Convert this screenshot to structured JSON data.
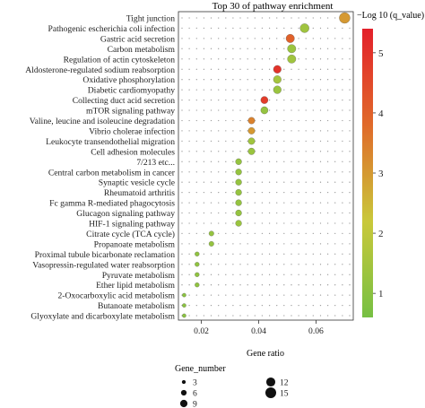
{
  "chart_data": {
    "type": "scatter",
    "title": "Top 30 of pathway enrichment",
    "xlabel": "Gene ratio",
    "ylabel": "",
    "xlim": [
      0.012,
      0.073
    ],
    "xticks": [
      0.02,
      0.04,
      0.06
    ],
    "xtick_labels": [
      "0.02",
      "0.04",
      "0.06"
    ],
    "categories": [
      "Tight junction",
      "Pathogenic escherichia coli infection",
      "Gastric acid secretion",
      "Carbon metabolism",
      "Regulation of actin cytoskeleton",
      "Aldosterone-regulated sodium reabsorption",
      "Oxidative phosphorylation",
      "Diabetic cardiomyopathy",
      "Collecting duct acid secretion",
      "mTOR signaling pathway",
      "Valine, leucine and isoleucine degradation",
      "Vibrio cholerae infection",
      "Leukocyte transendothelial migration",
      "Cell adhesion molecules",
      "7/213 etc...",
      "Central carbon metabolism in cancer",
      "Synaptic vesicle cycle",
      "Rheumatoid arthritis",
      "Fc gamma R-mediated phagocytosis",
      "Glucagon signaling pathway",
      "HIF-1 signaling pathway",
      "Citrate cycle (TCA cycle)",
      "Propanoate metabolism",
      "Proximal tubule bicarbonate reclamation",
      "Vasopressin-regulated water reabsorption",
      "Pyruvate metabolism",
      "Ether lipid metabolism",
      "2-Oxocarboxylic acid metabolism",
      "Butanoate metabolism",
      "Glyoxylate and dicarboxylate metabolism"
    ],
    "points": [
      {
        "x": 0.07,
        "gene_number": 15,
        "neglog10q": 3.0
      },
      {
        "x": 0.056,
        "gene_number": 12,
        "neglog10q": 1.4
      },
      {
        "x": 0.051,
        "gene_number": 11,
        "neglog10q": 4.0
      },
      {
        "x": 0.0515,
        "gene_number": 11,
        "neglog10q": 1.3
      },
      {
        "x": 0.0515,
        "gene_number": 11,
        "neglog10q": 1.4
      },
      {
        "x": 0.0465,
        "gene_number": 10,
        "neglog10q": 5.0
      },
      {
        "x": 0.0465,
        "gene_number": 10,
        "neglog10q": 1.5
      },
      {
        "x": 0.0465,
        "gene_number": 10,
        "neglog10q": 1.3
      },
      {
        "x": 0.042,
        "gene_number": 9,
        "neglog10q": 4.8
      },
      {
        "x": 0.042,
        "gene_number": 9,
        "neglog10q": 1.2
      },
      {
        "x": 0.0375,
        "gene_number": 8,
        "neglog10q": 3.4
      },
      {
        "x": 0.0375,
        "gene_number": 8,
        "neglog10q": 3.0
      },
      {
        "x": 0.0375,
        "gene_number": 8,
        "neglog10q": 1.4
      },
      {
        "x": 0.0375,
        "gene_number": 8,
        "neglog10q": 1.3
      },
      {
        "x": 0.033,
        "gene_number": 7,
        "neglog10q": 1.2
      },
      {
        "x": 0.033,
        "gene_number": 7,
        "neglog10q": 1.2
      },
      {
        "x": 0.033,
        "gene_number": 7,
        "neglog10q": 1.2
      },
      {
        "x": 0.033,
        "gene_number": 7,
        "neglog10q": 1.2
      },
      {
        "x": 0.033,
        "gene_number": 7,
        "neglog10q": 1.2
      },
      {
        "x": 0.033,
        "gene_number": 7,
        "neglog10q": 1.2
      },
      {
        "x": 0.033,
        "gene_number": 7,
        "neglog10q": 1.3
      },
      {
        "x": 0.0235,
        "gene_number": 5,
        "neglog10q": 1.2
      },
      {
        "x": 0.0235,
        "gene_number": 5,
        "neglog10q": 1.2
      },
      {
        "x": 0.0185,
        "gene_number": 4,
        "neglog10q": 1.1
      },
      {
        "x": 0.0185,
        "gene_number": 4,
        "neglog10q": 1.1
      },
      {
        "x": 0.0185,
        "gene_number": 4,
        "neglog10q": 1.1
      },
      {
        "x": 0.0185,
        "gene_number": 4,
        "neglog10q": 1.1
      },
      {
        "x": 0.014,
        "gene_number": 3,
        "neglog10q": 1.0
      },
      {
        "x": 0.014,
        "gene_number": 3,
        "neglog10q": 1.0
      },
      {
        "x": 0.014,
        "gene_number": 3,
        "neglog10q": 1.0
      }
    ],
    "color_legend": {
      "title": "−Log 10 (q_value)",
      "range": [
        0.6,
        5.4
      ],
      "ticks": [
        1,
        2,
        3,
        4,
        5
      ],
      "tick_labels": [
        "1",
        "2",
        "3",
        "4",
        "5"
      ],
      "colors_low_to_high": [
        "#76c043",
        "#c9c83a",
        "#e06a2a",
        "#e3202a"
      ]
    },
    "size_legend": {
      "title": "Gene_number",
      "values": [
        3,
        6,
        9,
        12,
        15
      ],
      "labels": [
        "3",
        "6",
        "9",
        "12",
        "15"
      ]
    },
    "grid": "dotted",
    "legend_position": "right"
  }
}
